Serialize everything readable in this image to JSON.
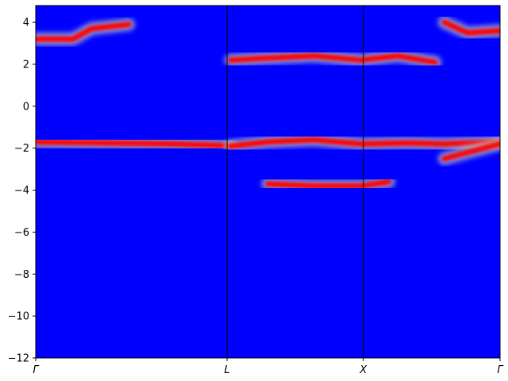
{
  "chart_data": {
    "type": "heatmap",
    "title": "",
    "xlabel": "",
    "ylabel": "",
    "ylim": [
      -12,
      4.8
    ],
    "y_ticks": [
      4,
      2,
      0,
      -2,
      -4,
      -6,
      -8,
      -10,
      -12
    ],
    "y_tick_labels": [
      "4",
      "2",
      "0",
      "−2",
      "−4",
      "−6",
      "−8",
      "−10",
      "−12"
    ],
    "kpath": {
      "positions": [
        0,
        0.4121,
        0.7055,
        1
      ],
      "labels": [
        "Γ",
        "L",
        "X",
        "Γ"
      ]
    },
    "colormap": {
      "low": "#0000ff",
      "mid": "#c0c0c0",
      "high": "#ff0000"
    },
    "high_intensity_bands": [
      {
        "path": [
          [
            0.0,
            3.2
          ],
          [
            0.08,
            3.2
          ],
          [
            0.12,
            3.7
          ],
          [
            0.2,
            3.9
          ]
        ]
      },
      {
        "path": [
          [
            0.88,
            4.0
          ],
          [
            0.93,
            3.5
          ],
          [
            1.0,
            3.6
          ]
        ]
      },
      {
        "path": [
          [
            0.42,
            2.2
          ],
          [
            0.5,
            2.3
          ],
          [
            0.6,
            2.4
          ],
          [
            0.7,
            2.2
          ],
          [
            0.78,
            2.4
          ],
          [
            0.86,
            2.1
          ]
        ]
      },
      {
        "path": [
          [
            0.0,
            -1.7
          ],
          [
            0.15,
            -1.75
          ],
          [
            0.3,
            -1.8
          ],
          [
            0.38,
            -1.85
          ],
          [
            0.42,
            -1.9
          ]
        ]
      },
      {
        "path": [
          [
            0.42,
            -1.9
          ],
          [
            0.5,
            -1.7
          ],
          [
            0.6,
            -1.6
          ],
          [
            0.7,
            -1.8
          ],
          [
            0.8,
            -1.75
          ],
          [
            0.88,
            -1.8
          ],
          [
            1.0,
            -1.7
          ]
        ]
      },
      {
        "path": [
          [
            0.88,
            -2.5
          ],
          [
            0.93,
            -2.2
          ],
          [
            1.0,
            -1.8
          ]
        ]
      },
      {
        "path": [
          [
            0.5,
            -3.7
          ],
          [
            0.6,
            -3.8
          ],
          [
            0.7,
            -3.8
          ],
          [
            0.76,
            -3.6
          ]
        ]
      }
    ]
  }
}
